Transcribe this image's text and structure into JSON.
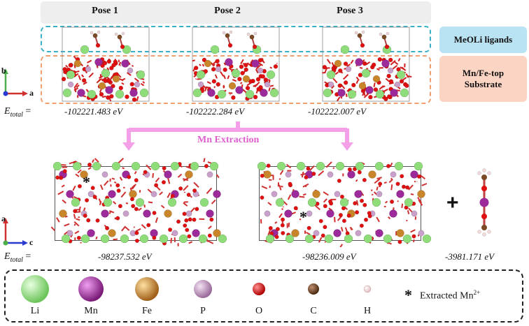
{
  "poses": [
    {
      "label": "Pose 1",
      "energy": "-102221.483 eV"
    },
    {
      "label": "Pose 2",
      "energy": "-102222.284 eV"
    },
    {
      "label": "Pose 3",
      "energy": "-102222.007 eV"
    }
  ],
  "tags": {
    "ligand": "MeOLi ligands",
    "substrate_line1": "Mn/Fe-top",
    "substrate_line2": "Substrate"
  },
  "energy_prefix": "E",
  "energy_sub": "total",
  "energy_eq": "=",
  "extraction": {
    "title": "Mn Extraction",
    "energy_left": "-98237.532 eV",
    "energy_right": "-98236.009 eV",
    "energy_molecule": "-3981.171 eV",
    "plus": "+",
    "star": "*"
  },
  "axes_top": {
    "vertical": "b",
    "horizontal": "a"
  },
  "axes_bottom": {
    "vertical": "a",
    "horizontal": "c"
  },
  "legend": {
    "items": [
      {
        "label": "Li",
        "color": "#8fdc7a"
      },
      {
        "label": "Mn",
        "color": "#9c2a9a"
      },
      {
        "label": "Fe",
        "color": "#c9852a"
      },
      {
        "label": "P",
        "color": "#c9a0c9"
      },
      {
        "label": "O",
        "color": "#e01010"
      },
      {
        "label": "C",
        "color": "#7a4a26"
      },
      {
        "label": "H",
        "color": "#f2d8d8"
      }
    ],
    "star": "*",
    "extracted_label": "Extracted Mn",
    "extracted_sup": "2+"
  },
  "colors": {
    "ligand_border": "#3ab0c8",
    "substrate_border": "#f0a070",
    "arrow_pink": "#f3a0e8"
  }
}
